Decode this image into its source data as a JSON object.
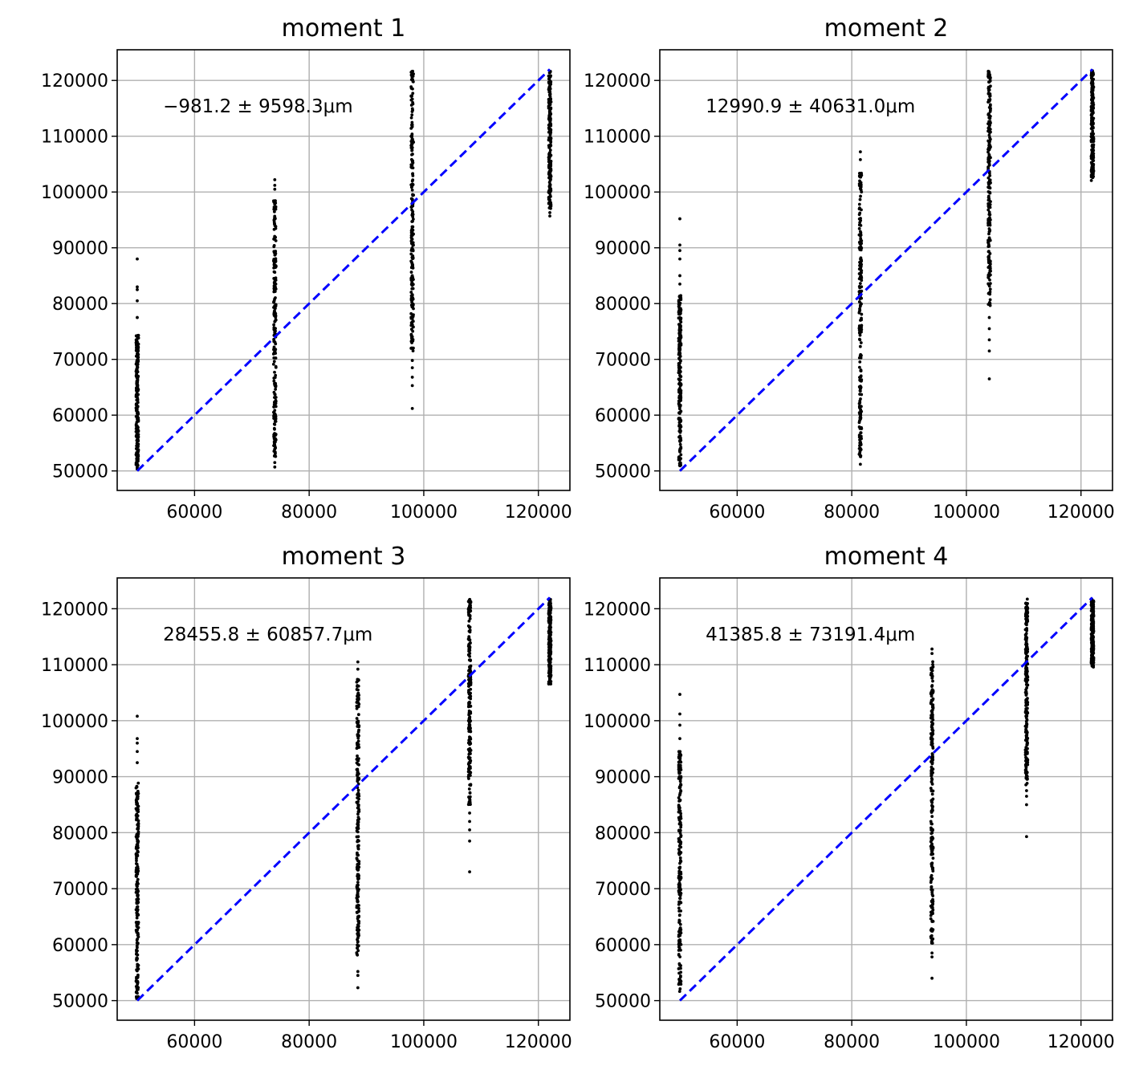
{
  "figure_colors": {
    "points": "#000000",
    "reference_line": "#0000ff",
    "grid": "#b0b0b0"
  },
  "chart_data": [
    {
      "type": "scatter",
      "title": "moment 1",
      "annotation": "−981.2 ± 9598.3μm",
      "xlabel": "",
      "ylabel": "",
      "xlim": [
        46500,
        125500
      ],
      "ylim": [
        46500,
        125500
      ],
      "xticks": [
        60000,
        80000,
        100000,
        120000
      ],
      "yticks": [
        50000,
        60000,
        70000,
        80000,
        90000,
        100000,
        110000,
        120000
      ],
      "xtick_labels": [
        "60000",
        "80000",
        "100000",
        "120000"
      ],
      "ytick_labels": [
        "50000",
        "60000",
        "70000",
        "80000",
        "90000",
        "100000",
        "110000",
        "120000"
      ],
      "grid": true,
      "reference_line": {
        "x": [
          50000,
          122000
        ],
        "y": [
          50000,
          122000
        ],
        "style": "dashed"
      },
      "groups": [
        {
          "x": 50000,
          "y_min": 50300,
          "y_max": 74300,
          "outliers": [
            77500,
            80500,
            82500,
            83000,
            88000
          ]
        },
        {
          "x": 74000,
          "y_min": 52500,
          "y_max": 98500,
          "outliers": [
            50700,
            51500,
            100500,
            101200,
            102200
          ]
        },
        {
          "x": 98000,
          "y_min": 71500,
          "y_max": 121800,
          "outliers": [
            61200,
            65300,
            66800,
            68500,
            69800
          ]
        },
        {
          "x": 122000,
          "y_min": 97000,
          "y_max": 121800,
          "outliers": [
            95700,
            96300
          ]
        }
      ]
    },
    {
      "type": "scatter",
      "title": "moment 2",
      "annotation": "12990.9 ± 40631.0μm",
      "xlabel": "",
      "ylabel": "",
      "xlim": [
        46500,
        125500
      ],
      "ylim": [
        46500,
        125500
      ],
      "xticks": [
        60000,
        80000,
        100000,
        120000
      ],
      "yticks": [
        50000,
        60000,
        70000,
        80000,
        90000,
        100000,
        110000,
        120000
      ],
      "xtick_labels": [
        "60000",
        "80000",
        "100000",
        "120000"
      ],
      "ytick_labels": [
        "50000",
        "60000",
        "70000",
        "80000",
        "90000",
        "100000",
        "110000",
        "120000"
      ],
      "grid": true,
      "reference_line": {
        "x": [
          50000,
          122000
        ],
        "y": [
          50000,
          122000
        ],
        "style": "dashed"
      },
      "groups": [
        {
          "x": 50000,
          "y_min": 50300,
          "y_max": 81500,
          "outliers": [
            83500,
            85000,
            88000,
            89500,
            90500,
            95200
          ]
        },
        {
          "x": 81500,
          "y_min": 52500,
          "y_max": 104000,
          "outliers": [
            51200,
            105800,
            107200
          ]
        },
        {
          "x": 104000,
          "y_min": 79500,
          "y_max": 121800,
          "outliers": [
            66500,
            71500,
            73500,
            75500,
            77500
          ]
        },
        {
          "x": 122000,
          "y_min": 102000,
          "y_max": 121800,
          "outliers": []
        }
      ]
    },
    {
      "type": "scatter",
      "title": "moment 3",
      "annotation": "28455.8 ± 60857.7μm",
      "xlabel": "",
      "ylabel": "",
      "xlim": [
        46500,
        125500
      ],
      "ylim": [
        46500,
        125500
      ],
      "xticks": [
        60000,
        80000,
        100000,
        120000
      ],
      "yticks": [
        50000,
        60000,
        70000,
        80000,
        90000,
        100000,
        110000,
        120000
      ],
      "xtick_labels": [
        "60000",
        "80000",
        "100000",
        "120000"
      ],
      "ytick_labels": [
        "50000",
        "60000",
        "70000",
        "80000",
        "90000",
        "100000",
        "110000",
        "120000"
      ],
      "grid": true,
      "reference_line": {
        "x": [
          50000,
          122000
        ],
        "y": [
          50000,
          122000
        ],
        "style": "dashed"
      },
      "groups": [
        {
          "x": 50000,
          "y_min": 50300,
          "y_max": 89000,
          "outliers": [
            92500,
            94500,
            96000,
            96800,
            100800
          ]
        },
        {
          "x": 88500,
          "y_min": 56500,
          "y_max": 108000,
          "outliers": [
            52300,
            54500,
            55200,
            109200,
            110500
          ]
        },
        {
          "x": 108000,
          "y_min": 85000,
          "y_max": 121800,
          "outliers": [
            73000,
            78500,
            80500,
            82000,
            83500
          ]
        },
        {
          "x": 122000,
          "y_min": 106500,
          "y_max": 121800,
          "outliers": []
        }
      ]
    },
    {
      "type": "scatter",
      "title": "moment 4",
      "annotation": "41385.8 ± 73191.4μm",
      "xlabel": "",
      "ylabel": "",
      "xlim": [
        46500,
        125500
      ],
      "ylim": [
        46500,
        125500
      ],
      "xticks": [
        60000,
        80000,
        100000,
        120000
      ],
      "yticks": [
        50000,
        60000,
        70000,
        80000,
        90000,
        100000,
        110000,
        120000
      ],
      "xtick_labels": [
        "60000",
        "80000",
        "100000",
        "120000"
      ],
      "ytick_labels": [
        "50000",
        "60000",
        "70000",
        "80000",
        "90000",
        "100000",
        "110000",
        "120000"
      ],
      "grid": true,
      "reference_line": {
        "x": [
          50000,
          122000
        ],
        "y": [
          50000,
          122000
        ],
        "style": "dashed"
      },
      "groups": [
        {
          "x": 50000,
          "y_min": 51000,
          "y_max": 94500,
          "outliers": [
            96800,
            99200,
            101200,
            104700
          ]
        },
        {
          "x": 94000,
          "y_min": 60000,
          "y_max": 111000,
          "outliers": [
            54000,
            57800,
            58500,
            112000,
            112800
          ]
        },
        {
          "x": 110500,
          "y_min": 88500,
          "y_max": 121800,
          "outliers": [
            79300,
            85000,
            86500,
            87500
          ]
        },
        {
          "x": 122000,
          "y_min": 109500,
          "y_max": 121800,
          "outliers": []
        }
      ]
    }
  ]
}
